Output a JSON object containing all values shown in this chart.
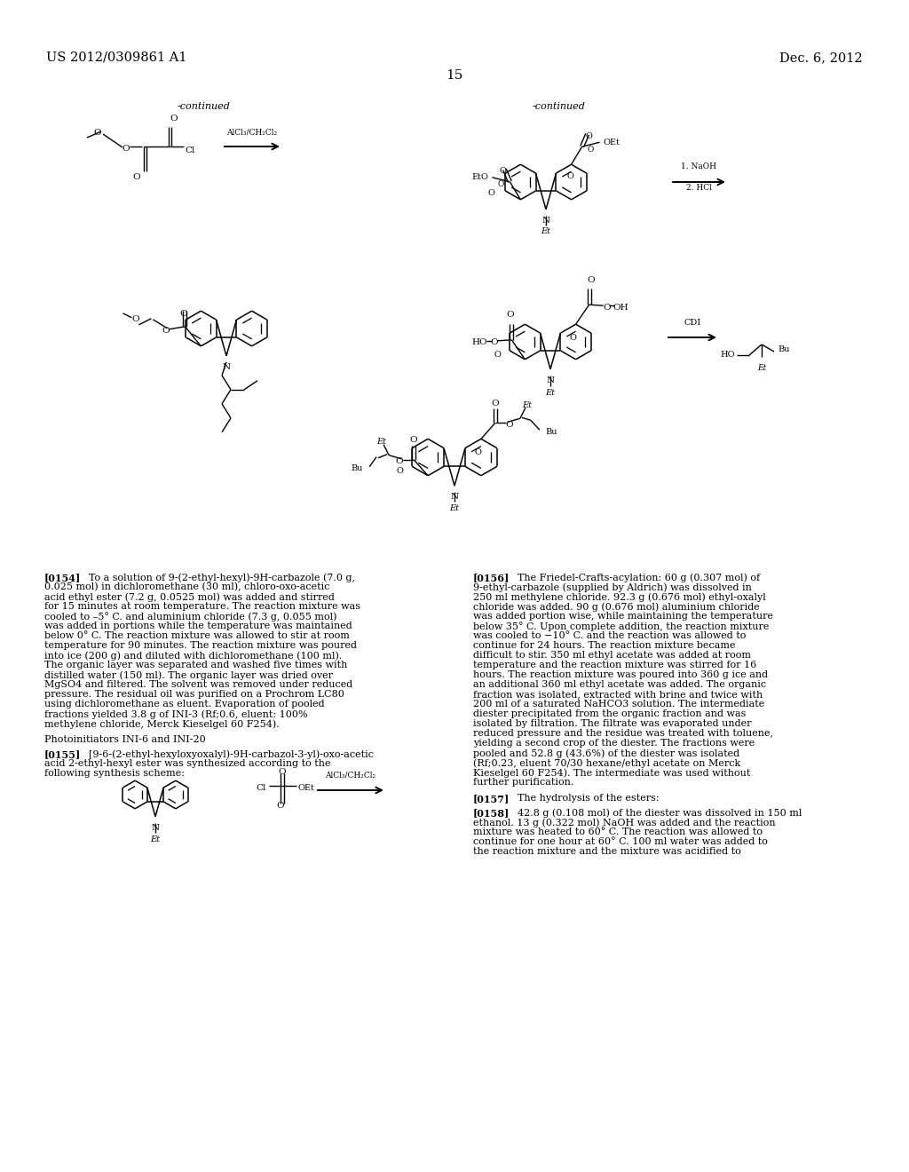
{
  "page_number": "15",
  "left_header": "US 2012/0309861 A1",
  "right_header": "Dec. 6, 2012",
  "background_color": "#ffffff",
  "text_color": "#000000",
  "para154": "To a solution of 9-(2-ethyl-hexyl)-9H-carbazole (7.0 g, 0.025 mol) in dichloromethane (30 ml), chloro-oxo-acetic acid ethyl ester (7.2 g, 0.0525 mol) was added and stirred for 15 minutes at room temperature. The reaction mixture was cooled to –5° C. and aluminium chloride (7.3 g, 0.055 mol) was added in portions while the temperature was maintained below 0° C. The reaction mixture was allowed to stir at room temperature for 90 minutes. The reaction mixture was poured into ice (200 g) and diluted with dichloromethane (100 ml). The organic layer was separated and washed five times with distilled water (150 ml). The organic layer was dried over MgSO4 and filtered. The solvent was removed under reduced pressure. The residual oil was purified on a Prochrom LC80 using dichloromethane as eluent. Evaporation of pooled fractions yielded 3.8 g of INI-3 (Rf;0.6, eluent: 100% methylene chloride, Merck Kieselgel 60 F254).",
  "para155": "[9-6-(2-ethyl-hexyloxyoxalyl)-9H-carbazol-3-yl)-oxo-acetic acid 2-ethyl-hexyl ester was synthesized according to the following synthesis scheme:",
  "para156": "The Friedel-Crafts-acylation: 60 g (0.307 mol) of 9-ethyl-carbazole (supplied by Aldrich) was dissolved in 250 ml methylene chloride. 92.3 g (0.676 mol) ethyl-oxalyl chloride was added. 90 g (0.676 mol) aluminium chloride was added portion wise, while maintaining the temperature below 35° C. Upon complete addition, the reaction mixture was cooled to −10° C. and the reaction was allowed to continue for 24 hours. The reaction mixture became difficult to stir. 350 ml ethyl acetate was added at room temperature and the reaction mixture was stirred for 16 hours. The reaction mixture was poured into 360 g ice and an additional 360 ml ethyl acetate was added. The organic fraction was isolated, extracted with brine and twice with 200 ml of a saturated NaHCO3 solution. The intermediate diester precipitated from the organic fraction and was isolated by filtration. The filtrate was evaporated under reduced pressure and the residue was treated with toluene, yielding a second crop of the diester. The fractions were pooled and 52.8 g (43.6%) of the diester was isolated (Rf;0.23, eluent 70/30 hexane/ethyl acetate on Merck Kieselgel 60 F254). The intermediate was used without further purification.",
  "para157": "The hydrolysis of the esters:",
  "para158": "42.8 g (0.108 mol) of the diester was dissolved in 150 ml ethanol. 13 g (0.322 mol) NaOH was added and the reaction mixture was heated to 60° C. The reaction was allowed to continue for one hour at 60° C. 100 ml water was added to the reaction mixture and the mixture was acidified to"
}
